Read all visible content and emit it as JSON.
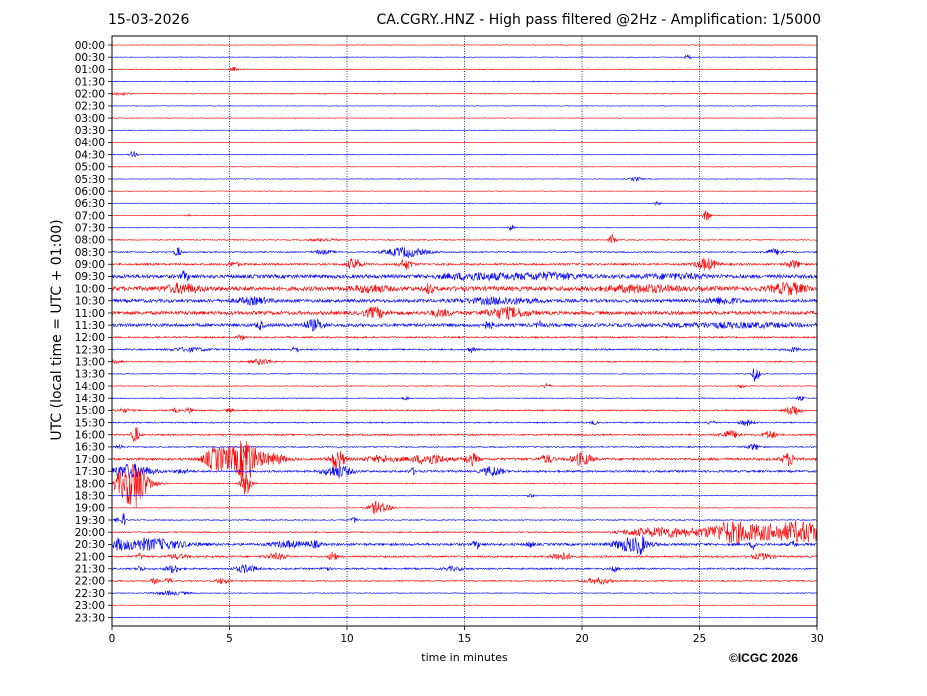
{
  "header": {
    "date": "15-03-2026",
    "title": "CA.CGRY..HNZ - High pass filtered @2Hz - Amplification: 1/5000"
  },
  "footer": {
    "copyright": "©ICGC 2026"
  },
  "chart_data": {
    "type": "line",
    "title": "CA.CGRY..HNZ - High pass filtered @2Hz - Amplification: 1/5000",
    "xlabel": "time in minutes",
    "ylabel": "UTC (local time = UTC + 01:00)",
    "xlim": [
      0,
      30
    ],
    "x_ticks": [
      0,
      5,
      10,
      15,
      20,
      25,
      30
    ],
    "x_tick_labels": [
      "0",
      "5",
      "10",
      "15",
      "20",
      "25",
      "30"
    ],
    "grid": "vertical dotted lines at 5-minute ticks",
    "colors": {
      "even_row": "#ff0000",
      "odd_row": "#0000ff",
      "grid": "#000080"
    },
    "rows": [
      {
        "label": "00:00",
        "noise": 0.3,
        "events": []
      },
      {
        "label": "00:30",
        "noise": 0.3,
        "events": [
          [
            24.5,
            2.5,
            0.1
          ]
        ]
      },
      {
        "label": "01:00",
        "noise": 0.4,
        "events": [
          [
            5.2,
            2,
            0.1
          ]
        ]
      },
      {
        "label": "01:30",
        "noise": 0.4,
        "events": []
      },
      {
        "label": "02:00",
        "noise": 0.4,
        "events": [
          [
            0.3,
            1.5,
            0.3
          ]
        ]
      },
      {
        "label": "02:30",
        "noise": 0.3,
        "events": []
      },
      {
        "label": "03:00",
        "noise": 0.3,
        "events": []
      },
      {
        "label": "03:30",
        "noise": 0.3,
        "events": []
      },
      {
        "label": "04:00",
        "noise": 0.3,
        "events": []
      },
      {
        "label": "04:30",
        "noise": 0.3,
        "events": [
          [
            0.9,
            3,
            0.1
          ]
        ]
      },
      {
        "label": "05:00",
        "noise": 0.3,
        "events": []
      },
      {
        "label": "05:30",
        "noise": 0.3,
        "events": [
          [
            22.3,
            2,
            0.2
          ]
        ]
      },
      {
        "label": "06:00",
        "noise": 0.3,
        "events": []
      },
      {
        "label": "06:30",
        "noise": 0.3,
        "events": [
          [
            23.2,
            2,
            0.1
          ]
        ]
      },
      {
        "label": "07:00",
        "noise": 0.3,
        "events": [
          [
            25.3,
            6,
            0.1
          ],
          [
            3.3,
            1.5,
            0.05
          ]
        ]
      },
      {
        "label": "07:30",
        "noise": 0.3,
        "events": [
          [
            17,
            3,
            0.1
          ]
        ]
      },
      {
        "label": "08:00",
        "noise": 0.5,
        "events": [
          [
            21.3,
            5,
            0.1
          ],
          [
            9,
            1.5,
            0.4
          ]
        ]
      },
      {
        "label": "08:30",
        "noise": 0.6,
        "events": [
          [
            2.8,
            5,
            0.1
          ],
          [
            12.5,
            5,
            0.6
          ],
          [
            9,
            2,
            0.3
          ],
          [
            28.2,
            3,
            0.3
          ]
        ]
      },
      {
        "label": "09:00",
        "noise": 1.0,
        "events": [
          [
            10.3,
            6,
            0.2
          ],
          [
            12.5,
            5,
            0.2
          ],
          [
            25.3,
            6,
            0.3
          ],
          [
            29,
            4,
            0.2
          ],
          [
            5.2,
            2,
            0.2
          ]
        ]
      },
      {
        "label": "09:30",
        "noise": 1.8,
        "events": [
          [
            3.1,
            5,
            0.1
          ],
          [
            15.5,
            3,
            1
          ],
          [
            18.5,
            3,
            1
          ],
          [
            24,
            2,
            1
          ]
        ]
      },
      {
        "label": "10:00",
        "noise": 2.2,
        "events": [
          [
            13.5,
            5,
            0.1
          ],
          [
            3,
            4,
            0.5
          ],
          [
            22.5,
            3,
            1
          ],
          [
            28.8,
            5,
            0.5
          ],
          [
            11,
            3,
            0.5
          ]
        ]
      },
      {
        "label": "10:30",
        "noise": 1.6,
        "events": [
          [
            16.5,
            3,
            1
          ],
          [
            6,
            3,
            0.5
          ],
          [
            26,
            3,
            0.5
          ]
        ]
      },
      {
        "label": "11:00",
        "noise": 1.8,
        "events": [
          [
            11.2,
            5,
            0.3
          ],
          [
            16.8,
            5,
            0.6
          ],
          [
            14,
            3,
            0.3
          ]
        ]
      },
      {
        "label": "11:30",
        "noise": 1.6,
        "events": [
          [
            8.6,
            5,
            0.3
          ],
          [
            6.3,
            4,
            0.1
          ],
          [
            16,
            3,
            0.2
          ],
          [
            18.2,
            3,
            0.1
          ],
          [
            26.5,
            2,
            2
          ]
        ]
      },
      {
        "label": "12:00",
        "noise": 0.8,
        "events": [
          [
            5.5,
            3,
            0.1
          ]
        ]
      },
      {
        "label": "12:30",
        "noise": 0.8,
        "events": [
          [
            15.3,
            3,
            0.1
          ],
          [
            3.3,
            2,
            0.5
          ],
          [
            7.8,
            3,
            0.1
          ],
          [
            29,
            2,
            0.2
          ]
        ]
      },
      {
        "label": "13:00",
        "noise": 0.6,
        "events": [
          [
            6.4,
            3,
            0.3
          ],
          [
            0.1,
            2,
            0.2
          ]
        ]
      },
      {
        "label": "13:30",
        "noise": 0.4,
        "events": [
          [
            27.4,
            9,
            0.1
          ]
        ]
      },
      {
        "label": "14:00",
        "noise": 0.4,
        "events": [
          [
            18.5,
            3,
            0.1
          ],
          [
            26.8,
            2,
            0.1
          ]
        ]
      },
      {
        "label": "14:30",
        "noise": 0.4,
        "events": [
          [
            12.5,
            2,
            0.1
          ],
          [
            29.3,
            3,
            0.1
          ]
        ]
      },
      {
        "label": "15:00",
        "noise": 0.7,
        "events": [
          [
            3.3,
            3,
            0.1
          ],
          [
            29,
            6,
            0.2
          ],
          [
            0.5,
            2,
            0.2
          ],
          [
            2.7,
            2,
            0.1
          ],
          [
            5,
            2,
            0.1
          ]
        ]
      },
      {
        "label": "15:30",
        "noise": 0.6,
        "events": [
          [
            20.5,
            2,
            0.1
          ],
          [
            27,
            3,
            0.2
          ],
          [
            25.5,
            2,
            0.1
          ]
        ]
      },
      {
        "label": "16:00",
        "noise": 0.8,
        "events": [
          [
            26.3,
            4,
            0.3
          ],
          [
            28,
            4,
            0.2
          ],
          [
            1,
            9,
            0.1
          ]
        ]
      },
      {
        "label": "16:30",
        "noise": 0.6,
        "events": [
          [
            27.3,
            3,
            0.2
          ],
          [
            0.3,
            2,
            0.1
          ]
        ]
      },
      {
        "label": "17:00",
        "noise": 1.2,
        "events": [
          [
            5.7,
            15,
            0.2
          ],
          [
            5,
            10,
            0.5
          ],
          [
            6,
            8,
            0.5
          ],
          [
            4.3,
            7,
            0.3
          ],
          [
            9.6,
            10,
            0.2
          ],
          [
            13.5,
            5,
            0.5
          ],
          [
            15.3,
            6,
            0.2
          ],
          [
            18.5,
            4,
            0.2
          ],
          [
            20,
            6,
            0.3
          ],
          [
            28.8,
            6,
            0.2
          ],
          [
            7,
            4,
            0.3
          ],
          [
            11.5,
            3,
            0.5
          ]
        ]
      },
      {
        "label": "17:30",
        "noise": 1.0,
        "events": [
          [
            0.8,
            7,
            0.6
          ],
          [
            9.6,
            6,
            0.4
          ],
          [
            16.2,
            5,
            0.3
          ],
          [
            12.8,
            3,
            0.1
          ],
          [
            3,
            2,
            0.2
          ]
        ]
      },
      {
        "label": "18:00",
        "noise": 0.5,
        "events": [
          [
            0.85,
            20,
            0.5
          ],
          [
            5.7,
            12,
            0.15
          ],
          [
            1,
            6,
            0.2
          ]
        ]
      },
      {
        "label": "18:30",
        "noise": 0.3,
        "events": [
          [
            17.8,
            2,
            0.1
          ]
        ]
      },
      {
        "label": "19:00",
        "noise": 0.3,
        "events": [
          [
            11.2,
            6,
            0.2
          ],
          [
            11.7,
            4,
            0.2
          ]
        ]
      },
      {
        "label": "19:30",
        "noise": 0.5,
        "events": [
          [
            10.3,
            3,
            0.1
          ],
          [
            0.3,
            2,
            0.2
          ],
          [
            0.5,
            6,
            0.05
          ]
        ]
      },
      {
        "label": "20:00",
        "noise": 0.6,
        "events": [
          [
            26.3,
            5,
            0.5
          ],
          [
            28,
            8,
            2.5
          ],
          [
            22.5,
            3,
            0.6
          ],
          [
            23.7,
            3,
            0.5
          ],
          [
            29.5,
            4,
            0.6
          ]
        ]
      },
      {
        "label": "20:30",
        "noise": 1.2,
        "events": [
          [
            22.1,
            7,
            0.5
          ],
          [
            22.5,
            6,
            0.1
          ],
          [
            0.3,
            3,
            0.1
          ],
          [
            1,
            3,
            1.2
          ],
          [
            1.8,
            3,
            1
          ],
          [
            7.5,
            3,
            0.5
          ],
          [
            8.6,
            3,
            0.2
          ],
          [
            15.5,
            4,
            0.1
          ],
          [
            17.8,
            3,
            0.1
          ],
          [
            27.3,
            4,
            0.1
          ],
          [
            29,
            3,
            0.1
          ]
        ]
      },
      {
        "label": "21:00",
        "noise": 0.9,
        "events": [
          [
            9.4,
            6,
            0.1
          ],
          [
            19.1,
            4,
            0.3
          ],
          [
            27.7,
            3,
            0.3
          ],
          [
            7,
            3,
            0.3
          ],
          [
            2.8,
            2,
            0.3
          ],
          [
            1.2,
            3,
            0.1
          ]
        ]
      },
      {
        "label": "21:30",
        "noise": 0.8,
        "events": [
          [
            2.6,
            4,
            0.2
          ],
          [
            5.7,
            4,
            0.3
          ],
          [
            1.2,
            3,
            0.1
          ],
          [
            21.4,
            3,
            0.1
          ],
          [
            9.1,
            3,
            0.1
          ],
          [
            14.5,
            2,
            0.3
          ]
        ]
      },
      {
        "label": "22:00",
        "noise": 0.6,
        "events": [
          [
            1.8,
            3,
            0.1
          ],
          [
            2.4,
            3,
            0.1
          ],
          [
            4.7,
            3,
            0.2
          ],
          [
            20.7,
            3,
            0.4
          ]
        ]
      },
      {
        "label": "22:30",
        "noise": 0.4,
        "events": [
          [
            2.5,
            2,
            0.5
          ]
        ]
      },
      {
        "label": "23:00",
        "noise": 0.3,
        "events": []
      },
      {
        "label": "23:30",
        "noise": 0.3,
        "events": []
      }
    ]
  }
}
